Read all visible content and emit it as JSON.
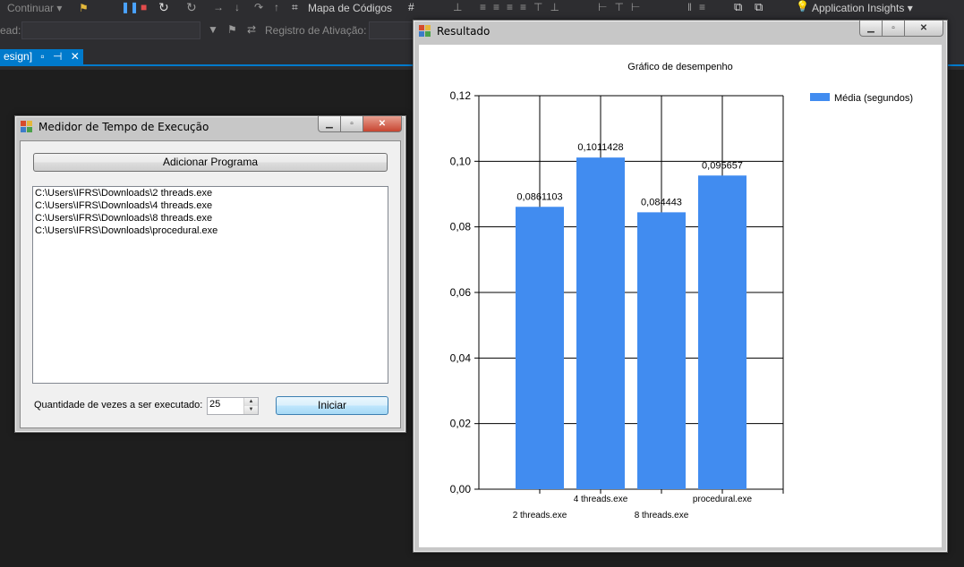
{
  "ide": {
    "toolbar": {
      "continue_label": "Continuar",
      "code_map_label": "Mapa de Códigos",
      "insights_label": "Application Insights"
    },
    "toolbar2": {
      "thread_label": "ead:",
      "activation_log_label": "Registro de Ativação:"
    },
    "doc_tab": {
      "label": "esign]"
    }
  },
  "form_main": {
    "title": "Medidor de Tempo de Execução",
    "add_button": "Adicionar Programa",
    "programs": [
      "C:\\Users\\IFRS\\Downloads\\2 threads.exe",
      "C:\\Users\\IFRS\\Downloads\\4 threads.exe",
      "C:\\Users\\IFRS\\Downloads\\8 threads.exe",
      "C:\\Users\\IFRS\\Downloads\\procedural.exe"
    ],
    "repeat_label": "Quantidade de vezes a ser executado:",
    "repeat_value": "25",
    "start_button": "Iniciar"
  },
  "form_result": {
    "title": "Resultado"
  },
  "chart_data": {
    "type": "bar",
    "title": "Gráfico de desempenho",
    "categories": [
      "2 threads.exe",
      "4 threads.exe",
      "8 threads.exe",
      "procedural.exe"
    ],
    "series": [
      {
        "name": "Média (segundos)",
        "values": [
          0.0861103,
          0.1011428,
          0.084443,
          0.095657
        ],
        "color": "#418cf0"
      }
    ],
    "data_labels": [
      "0,0861103",
      "0,1011428",
      "0,084443",
      "0,095657"
    ],
    "ylim": [
      0,
      0.12
    ],
    "yticks": [
      "0,00",
      "0,02",
      "0,04",
      "0,06",
      "0,08",
      "0,10",
      "0,12"
    ],
    "ytick_values": [
      0,
      0.02,
      0.04,
      0.06,
      0.08,
      0.1,
      0.12
    ],
    "grid": true,
    "legend_position": "top-right"
  }
}
